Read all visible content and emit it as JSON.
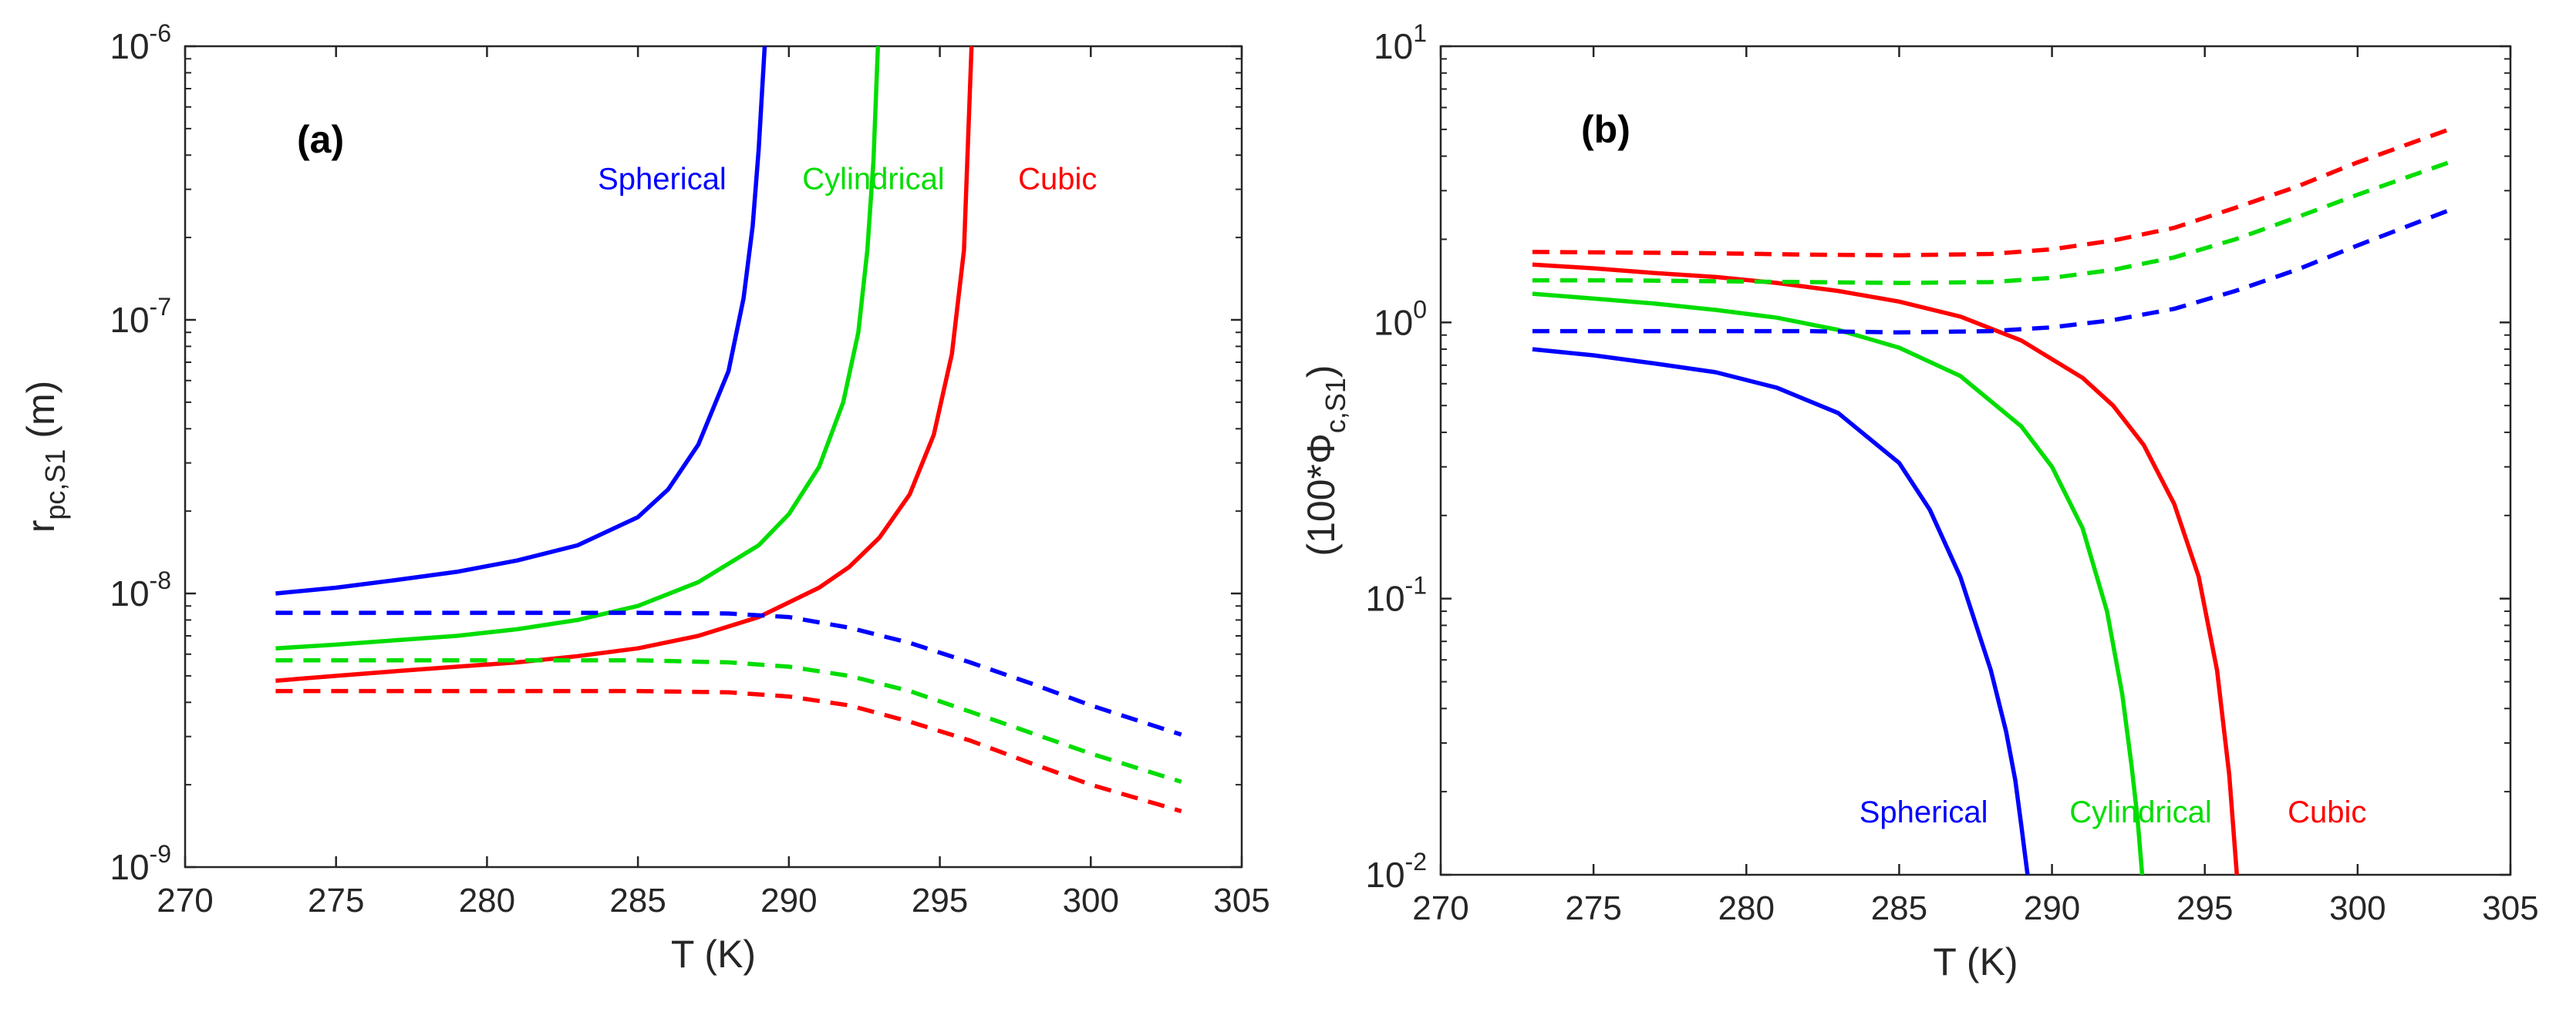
{
  "chart_data": [
    {
      "type": "line",
      "panel_label": "(a)",
      "xlabel": "T (K)",
      "ylabel_base": "r",
      "ylabel_sub": "pc,S1",
      "ylabel_unit": " (m)",
      "xlim": [
        270,
        305
      ],
      "ylim": [
        1e-09,
        1e-06
      ],
      "yscale": "log",
      "x_ticks": [
        270,
        275,
        280,
        285,
        290,
        295,
        300,
        305
      ],
      "x_tick_labels": [
        "270",
        "275",
        "280",
        "285",
        "290",
        "295",
        "300",
        "305"
      ],
      "y_ticks": [
        1e-09,
        1e-08,
        1e-07,
        1e-06
      ],
      "y_tick_labels": [
        {
          "base": "10",
          "exp": "-9"
        },
        {
          "base": "10",
          "exp": "-8"
        },
        {
          "base": "10",
          "exp": "-7"
        },
        {
          "base": "10",
          "exp": "-6"
        }
      ],
      "annotations": [
        {
          "text": "Spherical",
          "color": "#0000ff",
          "x": 285.8,
          "y": 3e-07
        },
        {
          "text": "Cylindrical",
          "color": "#00dd00",
          "x": 292.8,
          "y": 3e-07
        },
        {
          "text": "Cubic",
          "color": "#ff0000",
          "x": 298.9,
          "y": 3e-07
        }
      ],
      "series": [
        {
          "name": "Spherical (solid)",
          "color": "#0000ff",
          "dash": false,
          "x": [
            273,
            275,
            277,
            279,
            281,
            283,
            285,
            286,
            287,
            288,
            288.5,
            288.8,
            289.0,
            289.2
          ],
          "y": [
            1e-08,
            1.05e-08,
            1.12e-08,
            1.2e-08,
            1.32e-08,
            1.5e-08,
            1.9e-08,
            2.4e-08,
            3.5e-08,
            6.5e-08,
            1.2e-07,
            2.2e-07,
            4.2e-07,
            1e-06
          ]
        },
        {
          "name": "Cylindrical (solid)",
          "color": "#00dd00",
          "dash": false,
          "x": [
            273,
            275,
            277,
            279,
            281,
            283,
            285,
            287,
            289,
            290,
            291,
            291.8,
            292.3,
            292.6,
            292.8,
            292.95
          ],
          "y": [
            6.3e-09,
            6.5e-09,
            6.75e-09,
            7e-09,
            7.4e-09,
            8e-09,
            9e-09,
            1.1e-08,
            1.5e-08,
            1.95e-08,
            2.9e-08,
            5e-08,
            9e-08,
            1.8e-07,
            3.8e-07,
            1e-06
          ]
        },
        {
          "name": "Cubic (solid)",
          "color": "#ff0000",
          "dash": false,
          "x": [
            273,
            275,
            277,
            279,
            281,
            283,
            285,
            287,
            289,
            291,
            292,
            293,
            294,
            294.8,
            295.4,
            295.8,
            296.05
          ],
          "y": [
            4.8e-09,
            5e-09,
            5.2e-09,
            5.4e-09,
            5.6e-09,
            5.9e-09,
            6.3e-09,
            7e-09,
            8.2e-09,
            1.05e-08,
            1.25e-08,
            1.6e-08,
            2.3e-08,
            3.8e-08,
            7.5e-08,
            1.8e-07,
            1e-06
          ]
        },
        {
          "name": "Spherical (dashed)",
          "color": "#0000ff",
          "dash": true,
          "x": [
            273,
            276,
            279,
            282,
            285,
            288,
            290,
            292,
            294,
            296,
            298,
            300,
            303
          ],
          "y": [
            8.5e-09,
            8.5e-09,
            8.5e-09,
            8.5e-09,
            8.5e-09,
            8.45e-09,
            8.2e-09,
            7.5e-09,
            6.6e-09,
            5.6e-09,
            4.7e-09,
            3.9e-09,
            3.05e-09
          ]
        },
        {
          "name": "Cylindrical (dashed)",
          "color": "#00dd00",
          "dash": true,
          "x": [
            273,
            276,
            279,
            282,
            285,
            288,
            290,
            292,
            294,
            296,
            298,
            300,
            303
          ],
          "y": [
            5.7e-09,
            5.7e-09,
            5.7e-09,
            5.7e-09,
            5.7e-09,
            5.6e-09,
            5.4e-09,
            5e-09,
            4.4e-09,
            3.7e-09,
            3.1e-09,
            2.6e-09,
            2.05e-09
          ]
        },
        {
          "name": "Cubic (dashed)",
          "color": "#ff0000",
          "dash": true,
          "x": [
            273,
            276,
            279,
            282,
            285,
            288,
            290,
            292,
            294,
            296,
            298,
            300,
            303
          ],
          "y": [
            4.4e-09,
            4.4e-09,
            4.4e-09,
            4.4e-09,
            4.4e-09,
            4.35e-09,
            4.2e-09,
            3.9e-09,
            3.4e-09,
            2.9e-09,
            2.4e-09,
            2e-09,
            1.6e-09
          ]
        }
      ]
    },
    {
      "type": "line",
      "panel_label": "(b)",
      "xlabel": "T (K)",
      "ylabel_base": "(100*Φ",
      "ylabel_sub": "c,S1",
      "ylabel_unit": ")",
      "xlim": [
        270,
        305
      ],
      "ylim": [
        0.01,
        10
      ],
      "yscale": "log",
      "x_ticks": [
        270,
        275,
        280,
        285,
        290,
        295,
        300,
        305
      ],
      "x_tick_labels": [
        "270",
        "275",
        "280",
        "285",
        "290",
        "295",
        "300",
        "305"
      ],
      "y_ticks": [
        0.01,
        0.1,
        1,
        10
      ],
      "y_tick_labels": [
        {
          "base": "10",
          "exp": "-2"
        },
        {
          "base": "10",
          "exp": "-1"
        },
        {
          "base": "10",
          "exp": "0"
        },
        {
          "base": "10",
          "exp": "1"
        }
      ],
      "annotations": [
        {
          "text": "Spherical",
          "color": "#0000ff",
          "x": 285.8,
          "y": 0.0155
        },
        {
          "text": "Cylindrical",
          "color": "#00dd00",
          "x": 292.9,
          "y": 0.0155
        },
        {
          "text": "Cubic",
          "color": "#ff0000",
          "x": 299.0,
          "y": 0.0155
        }
      ],
      "series": [
        {
          "name": "Spherical (solid)",
          "color": "#0000ff",
          "dash": false,
          "x": [
            273,
            275,
            277,
            279,
            281,
            283,
            285,
            286,
            287,
            288,
            288.5,
            288.8,
            289.0,
            289.2
          ],
          "y": [
            0.8,
            0.76,
            0.71,
            0.66,
            0.58,
            0.47,
            0.31,
            0.21,
            0.12,
            0.055,
            0.033,
            0.022,
            0.015,
            0.01
          ]
        },
        {
          "name": "Cylindrical (solid)",
          "color": "#00dd00",
          "dash": false,
          "x": [
            273,
            275,
            277,
            279,
            281,
            283,
            285,
            287,
            289,
            290,
            291,
            291.8,
            292.3,
            292.6,
            292.8,
            292.95
          ],
          "y": [
            1.27,
            1.22,
            1.17,
            1.11,
            1.04,
            0.94,
            0.81,
            0.64,
            0.42,
            0.3,
            0.18,
            0.09,
            0.045,
            0.025,
            0.016,
            0.01
          ]
        },
        {
          "name": "Cubic (solid)",
          "color": "#ff0000",
          "dash": false,
          "x": [
            273,
            275,
            277,
            279,
            281,
            283,
            285,
            287,
            289,
            291,
            292,
            293,
            294,
            294.8,
            295.4,
            295.8,
            296.05
          ],
          "y": [
            1.62,
            1.57,
            1.51,
            1.46,
            1.39,
            1.3,
            1.19,
            1.05,
            0.86,
            0.63,
            0.5,
            0.36,
            0.22,
            0.12,
            0.055,
            0.023,
            0.01
          ]
        },
        {
          "name": "Spherical (dashed)",
          "color": "#0000ff",
          "dash": true,
          "x": [
            273,
            276,
            279,
            282,
            285,
            288,
            290,
            292,
            294,
            296,
            298,
            300,
            303
          ],
          "y": [
            0.93,
            0.93,
            0.93,
            0.93,
            0.92,
            0.93,
            0.96,
            1.02,
            1.12,
            1.3,
            1.55,
            1.9,
            2.55
          ]
        },
        {
          "name": "Cylindrical (dashed)",
          "color": "#00dd00",
          "dash": true,
          "x": [
            273,
            276,
            279,
            282,
            285,
            288,
            290,
            292,
            294,
            296,
            298,
            300,
            303
          ],
          "y": [
            1.42,
            1.42,
            1.41,
            1.4,
            1.39,
            1.4,
            1.45,
            1.55,
            1.72,
            2.0,
            2.4,
            2.9,
            3.8
          ]
        },
        {
          "name": "Cubic (dashed)",
          "color": "#ff0000",
          "dash": true,
          "x": [
            273,
            276,
            279,
            282,
            285,
            288,
            290,
            292,
            294,
            296,
            298,
            300,
            303
          ],
          "y": [
            1.8,
            1.79,
            1.78,
            1.76,
            1.75,
            1.77,
            1.84,
            1.98,
            2.2,
            2.6,
            3.1,
            3.8,
            5.0
          ]
        }
      ]
    }
  ]
}
